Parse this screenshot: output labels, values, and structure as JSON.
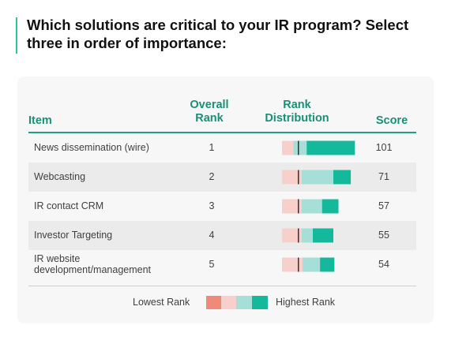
{
  "title": "Which solutions are critical to your IR program? Select three in order of importance:",
  "headers": {
    "item": "Item",
    "overall_rank": "Overall Rank",
    "rank_distribution": "Rank Distribution",
    "score": "Score"
  },
  "colors": {
    "accent": "#2ec4a0",
    "header_text": "#1a8f78",
    "lowest_rank": "#ef8a78",
    "low_rank": "#f7d0cc",
    "high_rank": "#a6dfd7",
    "highest_rank": "#14b89a",
    "divider": "#333333"
  },
  "legend": {
    "lowest_label": "Lowest Rank",
    "highest_label": "Highest Rank"
  },
  "chart_data": {
    "type": "table",
    "columns": [
      "Item",
      "Overall Rank",
      "Rank Distribution",
      "Score"
    ],
    "rows": [
      {
        "item": "News dissemination (wire)",
        "rank": "1",
        "score": "101",
        "distribution": [
          0,
          0.11,
          0.13,
          0.47
        ]
      },
      {
        "item": "Webcasting",
        "rank": "2",
        "score": "71",
        "distribution": [
          0,
          0.19,
          0.31,
          0.17
        ]
      },
      {
        "item": "IR contact CRM",
        "rank": "3",
        "score": "57",
        "distribution": [
          0,
          0.19,
          0.2,
          0.16
        ]
      },
      {
        "item": "Investor Targeting",
        "rank": "4",
        "score": "55",
        "distribution": [
          0,
          0.19,
          0.11,
          0.2
        ]
      },
      {
        "item": "IR website development/management",
        "rank": "5",
        "score": "54",
        "distribution": [
          0,
          0.2,
          0.17,
          0.14
        ]
      }
    ]
  }
}
